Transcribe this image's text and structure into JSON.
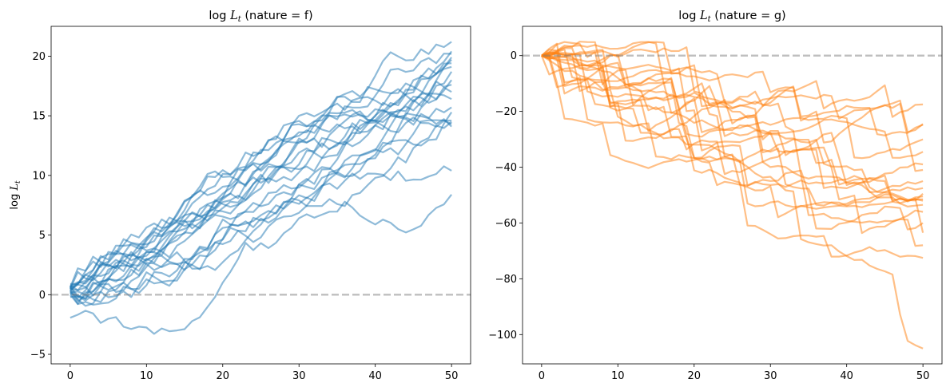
{
  "chart_data": [
    {
      "type": "line",
      "title": "log L_t (nature = f)",
      "title_prefix": "log ",
      "title_var": "L",
      "title_sub": "t",
      "title_suffix": " (nature = f)",
      "xlabel": "",
      "ylabel": "log L_t",
      "ylabel_prefix": "log ",
      "ylabel_var": "L",
      "ylabel_sub": "t",
      "xlim": [
        -2.5,
        52.5
      ],
      "ylim": [
        -5.8,
        22.5
      ],
      "xticks": [
        0,
        10,
        20,
        30,
        40,
        50
      ],
      "xtick_labels": [
        "0",
        "10",
        "20",
        "30",
        "40",
        "50"
      ],
      "yticks": [
        -5,
        0,
        5,
        10,
        15,
        20
      ],
      "ytick_labels": [
        "−5",
        "0",
        "5",
        "10",
        "15",
        "20"
      ],
      "reference_line_y": 0,
      "color": "#1f77b4",
      "opacity": 0.5,
      "n_paths": 20,
      "n_steps": 50,
      "end_values": [
        21.2,
        20.4,
        20.2,
        19.7,
        19.4,
        19.1,
        18.7,
        18.0,
        17.6,
        17.0,
        16.4,
        15.7,
        15.3,
        14.6,
        14.5,
        14.3,
        14.1,
        10.4,
        8.4,
        19.9
      ],
      "start_values": [
        0.9,
        0.7,
        0.6,
        0.5,
        0.3,
        0.2,
        0.8,
        0.4,
        0.1,
        0.6,
        0.5,
        0.0,
        -0.2,
        0.3,
        0.7,
        0.2,
        0.4,
        0.5,
        -1.5,
        0.6
      ],
      "dip_paths": [
        {
          "path": 18,
          "dip_step": 11,
          "dip_value": -4.5
        }
      ]
    },
    {
      "type": "line",
      "title": "log L_t (nature = g)",
      "title_prefix": "log ",
      "title_var": "L",
      "title_sub": "t",
      "title_suffix": " (nature = g)",
      "xlabel": "",
      "ylabel": "",
      "xlim": [
        -2.5,
        52.5
      ],
      "ylim": [
        -110.5,
        10.5
      ],
      "xticks": [
        0,
        10,
        20,
        30,
        40,
        50
      ],
      "xtick_labels": [
        "0",
        "10",
        "20",
        "30",
        "40",
        "50"
      ],
      "yticks": [
        -100,
        -80,
        -60,
        -40,
        -20,
        0
      ],
      "ytick_labels": [
        "−100",
        "−80",
        "−60",
        "−40",
        "−20",
        "0"
      ],
      "reference_line_y": 0,
      "color": "#ff7f0e",
      "opacity": 0.5,
      "n_paths": 20,
      "n_steps": 50,
      "end_values": [
        -17.5,
        -24.5,
        -24.8,
        -30.0,
        -34.5,
        -39.0,
        -41.0,
        -45.0,
        -47.5,
        -49.5,
        -50.5,
        -51.5,
        -52.0,
        -53.5,
        -56.0,
        -60.0,
        -63.5,
        -68.0,
        -72.5,
        -105.0
      ],
      "start_values": [
        0,
        0,
        0,
        0,
        0,
        0,
        0,
        0,
        0,
        0,
        0,
        0,
        0,
        0,
        0,
        0,
        0,
        0,
        0,
        0
      ],
      "peak_max": 5
    }
  ]
}
